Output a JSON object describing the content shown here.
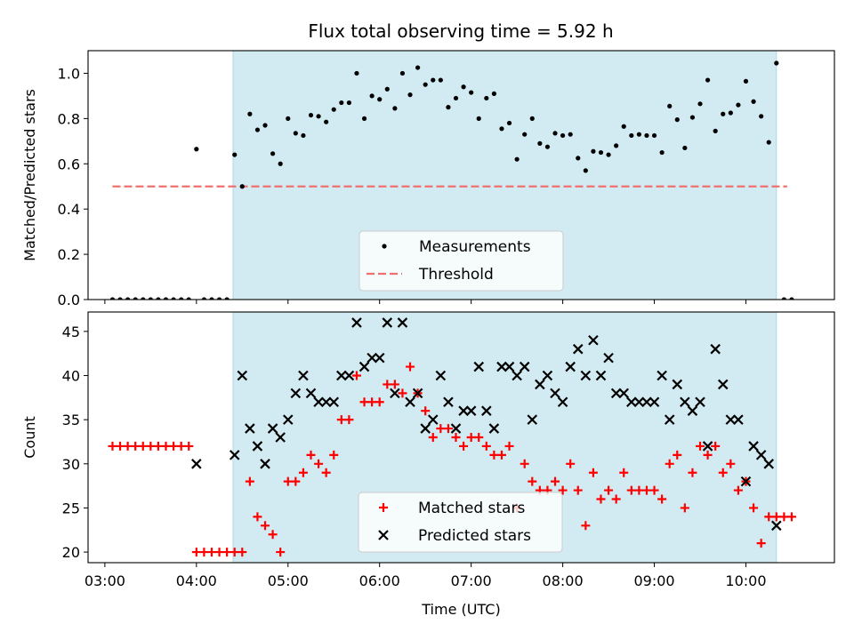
{
  "title": "Flux total observing time = 5.92 h",
  "colors": {
    "shade": "#add8e6",
    "threshold": "#f07070",
    "matched": "#ff0000",
    "predicted": "#000000",
    "measurement": "#000000"
  },
  "chart_data": [
    {
      "type": "scatter",
      "ylabel": "Matched/Predicted stars",
      "ylim": [
        0,
        1.1
      ],
      "xlim": [
        "02:49",
        "10:58"
      ],
      "yticks": [
        "0.0",
        "0.2",
        "0.4",
        "0.6",
        "0.8",
        "1.0"
      ],
      "observing_window": [
        "04:24",
        "10:20"
      ],
      "legend": {
        "placement": "lower center",
        "entries": [
          "Measurements",
          "Threshold"
        ]
      },
      "threshold": {
        "name": "Threshold",
        "value": 0.5,
        "x": [
          "03:05",
          "10:27"
        ]
      },
      "series": [
        {
          "name": "Measurements",
          "x": [
            "03:05",
            "03:10",
            "03:15",
            "03:20",
            "03:25",
            "03:30",
            "03:35",
            "03:40",
            "03:45",
            "03:50",
            "03:55",
            "04:00",
            "04:05",
            "04:10",
            "04:15",
            "04:20",
            "04:25",
            "04:30",
            "04:35",
            "04:40",
            "04:45",
            "04:50",
            "04:55",
            "05:00",
            "05:05",
            "05:10",
            "05:15",
            "05:20",
            "05:25",
            "05:30",
            "05:35",
            "05:40",
            "05:45",
            "05:50",
            "05:55",
            "06:00",
            "06:05",
            "06:10",
            "06:15",
            "06:20",
            "06:25",
            "06:30",
            "06:35",
            "06:40",
            "06:45",
            "06:50",
            "06:55",
            "07:00",
            "07:05",
            "07:10",
            "07:15",
            "07:20",
            "07:25",
            "07:30",
            "07:35",
            "07:40",
            "07:45",
            "07:50",
            "07:55",
            "08:00",
            "08:05",
            "08:10",
            "08:15",
            "08:20",
            "08:25",
            "08:30",
            "08:35",
            "08:40",
            "08:45",
            "08:50",
            "08:55",
            "09:00",
            "09:05",
            "09:10",
            "09:15",
            "09:20",
            "09:25",
            "09:30",
            "09:35",
            "09:40",
            "09:45",
            "09:50",
            "09:55",
            "10:00",
            "10:05",
            "10:10",
            "10:15",
            "10:20",
            "10:25",
            "10:30"
          ],
          "y": [
            0,
            0,
            0,
            0,
            0,
            0,
            0,
            0,
            0,
            0,
            0,
            0.665,
            0,
            0,
            0,
            0,
            0.64,
            0.5,
            0.82,
            0.75,
            0.77,
            0.645,
            0.6,
            0.8,
            0.735,
            0.725,
            0.815,
            0.81,
            0.785,
            0.84,
            0.87,
            0.87,
            1.0,
            0.8,
            0.9,
            0.885,
            0.93,
            0.845,
            1.0,
            0.905,
            1.025,
            0.95,
            0.97,
            0.97,
            0.85,
            0.89,
            0.94,
            0.915,
            0.8,
            0.89,
            0.91,
            0.755,
            0.78,
            0.62,
            0.73,
            0.8,
            0.69,
            0.675,
            0.735,
            0.725,
            0.73,
            0.625,
            0.57,
            0.655,
            0.65,
            0.64,
            0.68,
            0.765,
            0.725,
            0.73,
            0.725,
            0.725,
            0.65,
            0.855,
            0.795,
            0.67,
            0.805,
            0.865,
            0.97,
            0.745,
            0.82,
            0.825,
            0.86,
            0.965,
            0.875,
            0.81,
            0.695,
            1.045,
            0,
            0
          ]
        }
      ]
    },
    {
      "type": "scatter",
      "xlabel": "Time (UTC)",
      "ylabel": "Count",
      "ylim": [
        18.8,
        47.2
      ],
      "xlim": [
        "02:49",
        "10:58"
      ],
      "xticks": [
        "03:00",
        "04:00",
        "05:00",
        "06:00",
        "07:00",
        "08:00",
        "09:00",
        "10:00"
      ],
      "yticks": [
        "20",
        "25",
        "30",
        "35",
        "40",
        "45"
      ],
      "observing_window": [
        "04:24",
        "10:20"
      ],
      "legend": {
        "placement": "lower center",
        "entries": [
          "Matched stars",
          "Predicted stars"
        ]
      },
      "series": [
        {
          "name": "Matched stars",
          "marker": "+",
          "x": [
            "03:05",
            "03:10",
            "03:15",
            "03:20",
            "03:25",
            "03:30",
            "03:35",
            "03:40",
            "03:45",
            "03:50",
            "03:55",
            "04:00",
            "04:05",
            "04:10",
            "04:15",
            "04:20",
            "04:25",
            "04:30",
            "04:35",
            "04:40",
            "04:45",
            "04:50",
            "04:55",
            "05:00",
            "05:05",
            "05:10",
            "05:15",
            "05:20",
            "05:25",
            "05:30",
            "05:35",
            "05:40",
            "05:45",
            "05:50",
            "05:55",
            "06:00",
            "06:05",
            "06:10",
            "06:15",
            "06:20",
            "06:25",
            "06:30",
            "06:35",
            "06:40",
            "06:45",
            "06:50",
            "06:55",
            "07:00",
            "07:05",
            "07:10",
            "07:15",
            "07:20",
            "07:25",
            "07:30",
            "07:35",
            "07:40",
            "07:45",
            "07:50",
            "07:55",
            "08:00",
            "08:05",
            "08:10",
            "08:15",
            "08:20",
            "08:25",
            "08:30",
            "08:35",
            "08:40",
            "08:45",
            "08:50",
            "08:55",
            "09:00",
            "09:05",
            "09:10",
            "09:15",
            "09:20",
            "09:25",
            "09:30",
            "09:35",
            "09:40",
            "09:45",
            "09:50",
            "09:55",
            "10:00",
            "10:05",
            "10:10",
            "10:15",
            "10:20",
            "10:25",
            "10:30"
          ],
          "y": [
            32,
            32,
            32,
            32,
            32,
            32,
            32,
            32,
            32,
            32,
            32,
            20,
            20,
            20,
            20,
            20,
            20,
            20,
            28,
            24,
            23,
            22,
            20,
            28,
            28,
            29,
            31,
            30,
            29,
            31,
            35,
            35,
            40,
            37,
            37,
            37,
            39,
            39,
            38,
            41,
            38,
            36,
            33,
            34,
            34,
            33,
            32,
            33,
            33,
            32,
            31,
            31,
            32,
            25,
            30,
            28,
            27,
            27,
            28,
            27,
            30,
            27,
            23,
            29,
            26,
            27,
            26,
            29,
            27,
            27,
            27,
            27,
            26,
            30,
            31,
            25,
            29,
            32,
            31,
            32,
            29,
            30,
            27,
            28,
            25,
            21,
            24,
            24,
            24,
            24
          ]
        },
        {
          "name": "Predicted stars",
          "marker": "x",
          "x": [
            "04:00",
            "04:25",
            "04:30",
            "04:35",
            "04:40",
            "04:45",
            "04:50",
            "04:55",
            "05:00",
            "05:05",
            "05:10",
            "05:15",
            "05:20",
            "05:25",
            "05:30",
            "05:35",
            "05:40",
            "05:45",
            "05:50",
            "05:55",
            "06:00",
            "06:05",
            "06:10",
            "06:15",
            "06:20",
            "06:25",
            "06:30",
            "06:35",
            "06:40",
            "06:45",
            "06:50",
            "06:55",
            "07:00",
            "07:05",
            "07:10",
            "07:15",
            "07:20",
            "07:25",
            "07:30",
            "07:35",
            "07:40",
            "07:45",
            "07:50",
            "07:55",
            "08:00",
            "08:05",
            "08:10",
            "08:15",
            "08:20",
            "08:25",
            "08:30",
            "08:35",
            "08:40",
            "08:45",
            "08:50",
            "08:55",
            "09:00",
            "09:05",
            "09:10",
            "09:15",
            "09:20",
            "09:25",
            "09:30",
            "09:35",
            "09:40",
            "09:45",
            "09:50",
            "09:55",
            "10:00",
            "10:05",
            "10:10",
            "10:15",
            "10:20"
          ],
          "y": [
            30,
            31,
            40,
            34,
            32,
            30,
            34,
            33,
            35,
            38,
            40,
            38,
            37,
            37,
            37,
            40,
            40,
            46,
            41,
            42,
            42,
            46,
            38,
            46,
            37,
            38,
            34,
            35,
            40,
            37,
            34,
            36,
            36,
            41,
            36,
            34,
            41,
            41,
            40,
            41,
            35,
            39,
            40,
            38,
            37,
            41,
            43,
            40,
            44,
            40,
            42,
            38,
            38,
            37,
            37,
            37,
            37,
            40,
            35,
            39,
            37,
            36,
            37,
            32,
            43,
            39,
            35,
            35,
            28,
            32,
            31,
            30,
            23
          ]
        }
      ]
    }
  ]
}
